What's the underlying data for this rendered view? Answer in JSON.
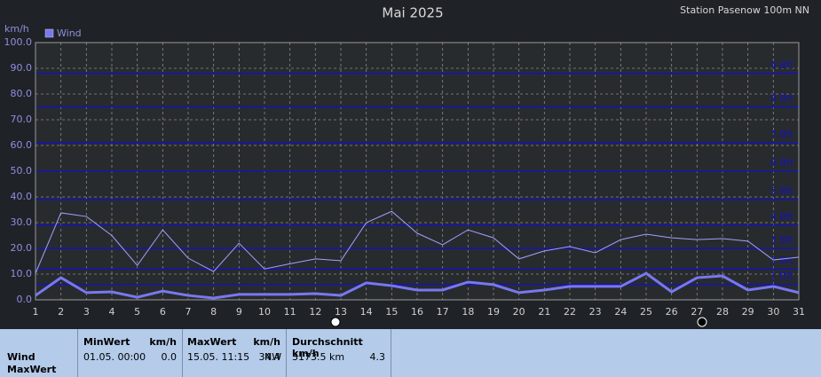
{
  "chart_data": {
    "type": "line",
    "title": "Mai 2025",
    "subtitle": "Station Pasenow 100m NN",
    "y_label": "km/h",
    "x": [
      1,
      2,
      3,
      4,
      5,
      6,
      7,
      8,
      9,
      10,
      11,
      12,
      13,
      14,
      15,
      16,
      17,
      18,
      19,
      20,
      21,
      22,
      23,
      24,
      25,
      26,
      27,
      28,
      29,
      30,
      31
    ],
    "xlim": [
      1,
      31
    ],
    "xticks": [
      1,
      2,
      3,
      4,
      5,
      6,
      7,
      8,
      9,
      10,
      11,
      12,
      13,
      14,
      15,
      16,
      17,
      18,
      19,
      20,
      21,
      22,
      23,
      24,
      25,
      26,
      27,
      28,
      29,
      30,
      31
    ],
    "ylim": [
      0,
      100
    ],
    "yticks": [
      {
        "value": 0,
        "label": "0.0"
      },
      {
        "value": 10,
        "label": "10.0"
      },
      {
        "value": 20,
        "label": "20.0"
      },
      {
        "value": 30,
        "label": "30.0"
      },
      {
        "value": 40,
        "label": "40.0"
      },
      {
        "value": 50,
        "label": "50.0"
      },
      {
        "value": 60,
        "label": "60.0"
      },
      {
        "value": 70,
        "label": "70.0"
      },
      {
        "value": 80,
        "label": "80.0"
      },
      {
        "value": 90,
        "label": "90.0"
      },
      {
        "value": 100,
        "label": "100.0"
      }
    ],
    "grid": true,
    "bft_lines": [
      {
        "value": 6,
        "label": "1 Bft"
      },
      {
        "value": 12,
        "label": "2 Bft"
      },
      {
        "value": 20,
        "label": "3 Bft"
      },
      {
        "value": 29,
        "label": "4 Bft"
      },
      {
        "value": 39,
        "label": "5 Bft"
      },
      {
        "value": 50,
        "label": "6 Bft"
      },
      {
        "value": 61,
        "label": "7 Bft"
      },
      {
        "value": 75,
        "label": "8 Bft"
      },
      {
        "value": 88,
        "label": "9 Bft"
      }
    ],
    "bft_color": "#1414b4",
    "series": [
      {
        "name": "Wind",
        "color": "#7878f0",
        "values": [
          1.7,
          8.6,
          2.8,
          3.1,
          1.0,
          3.4,
          1.7,
          0.7,
          2.1,
          2.1,
          2.1,
          2.4,
          1.7,
          6.6,
          5.5,
          3.8,
          3.8,
          6.9,
          5.9,
          2.8,
          3.8,
          5.2,
          5.2,
          5.2,
          10.3,
          3.1,
          8.6,
          9.3,
          3.8,
          5.2,
          2.8
        ]
      },
      {
        "color": "#a0a0ff",
        "values": [
          10.3,
          33.8,
          32.4,
          25.0,
          13.4,
          27.2,
          16.2,
          11.0,
          22.0,
          12.0,
          14.0,
          15.9,
          15.2,
          30.0,
          34.4,
          25.9,
          21.4,
          27.2,
          24.1,
          15.9,
          19.0,
          20.7,
          18.3,
          23.4,
          25.5,
          24.1,
          23.4,
          23.8,
          22.8,
          15.5,
          16.6
        ]
      }
    ]
  },
  "table": {
    "row_labels": [
      "Wind",
      "MaxWert"
    ],
    "columns": [
      {
        "head": [
          "MinWert",
          "km/h"
        ],
        "cells": [
          "01.05.  00:00",
          "0.0"
        ]
      },
      {
        "head": [
          "MaxWert",
          "km/h"
        ],
        "cells": [
          "15.05.  11:15",
          "NW",
          "34.4"
        ]
      },
      {
        "head": [
          "Durchschnitt km/h"
        ],
        "cells": [
          "3173.5 km",
          "4.3"
        ]
      }
    ]
  }
}
